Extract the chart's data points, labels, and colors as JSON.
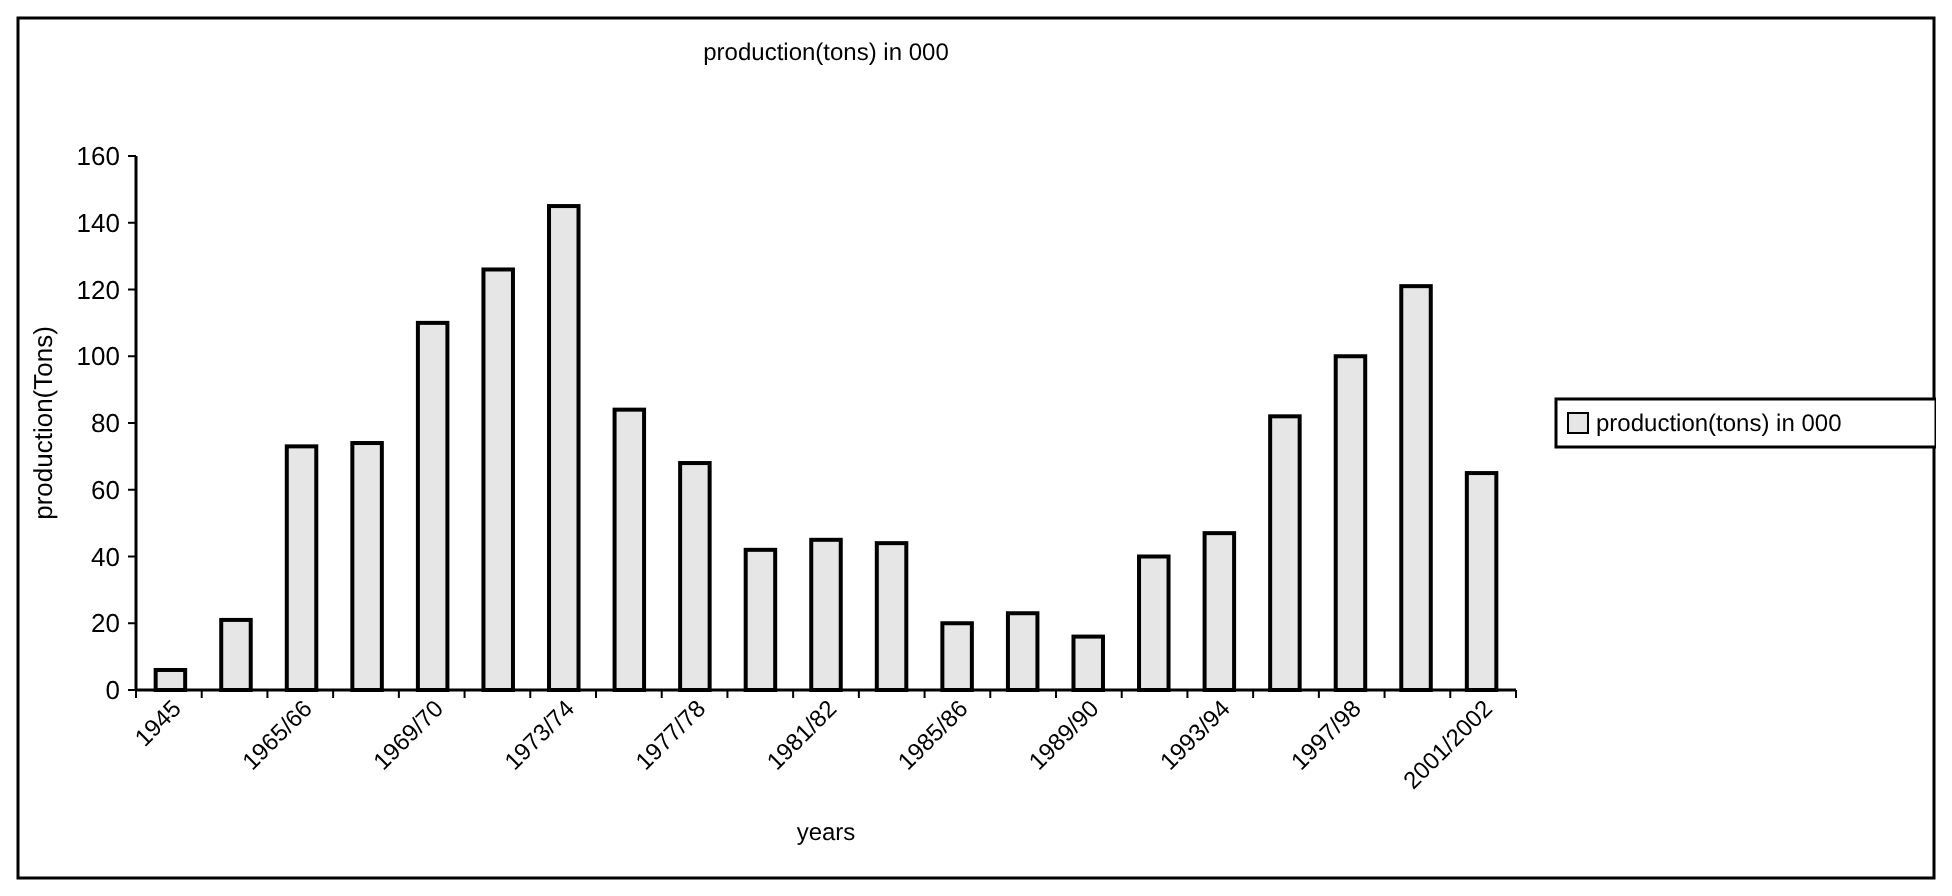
{
  "chart_data": {
    "type": "bar",
    "title": "production(tons) in 000",
    "xlabel": "years",
    "ylabel": "production(Tons)",
    "categories": [
      "1945",
      null,
      "1965/66",
      null,
      "1969/70",
      null,
      "1973/74",
      null,
      "1977/78",
      null,
      "1981/82",
      null,
      "1985/86",
      null,
      "1989/90",
      null,
      "1993/94",
      null,
      "1997/98",
      null,
      "2001/2002"
    ],
    "series": [
      {
        "name": "production(tons) in 000",
        "color": "#e6e6e6",
        "values": [
          6,
          21,
          73,
          74,
          110,
          126,
          145,
          84,
          68,
          42,
          45,
          44,
          20,
          23,
          16,
          40,
          47,
          82,
          100,
          121,
          65
        ]
      }
    ],
    "ylim": [
      0,
      160
    ],
    "yticks": [
      0,
      20,
      40,
      60,
      80,
      100,
      120,
      140,
      160
    ],
    "grid": false,
    "legend": "right"
  }
}
